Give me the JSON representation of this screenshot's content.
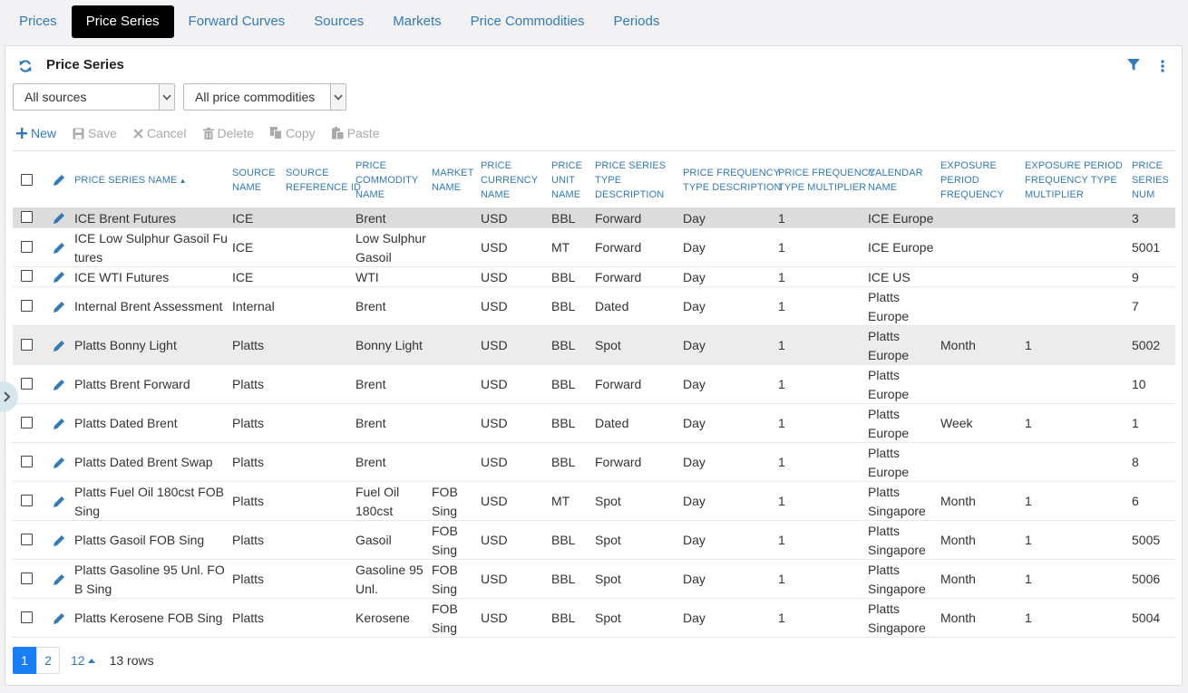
{
  "tabs": [
    "Prices",
    "Price Series",
    "Forward Curves",
    "Sources",
    "Markets",
    "Price Commodities",
    "Periods"
  ],
  "active_tab": "Price Series",
  "panel": {
    "title": "Price Series"
  },
  "filters": {
    "sources": "All sources",
    "commodities": "All price commodities"
  },
  "toolbar": {
    "new": "New",
    "save": "Save",
    "cancel": "Cancel",
    "delete": "Delete",
    "copy": "Copy",
    "paste": "Paste"
  },
  "columns": [
    [
      "PRICE SERIES NAME"
    ],
    [
      "SOURCE",
      "NAME"
    ],
    [
      "SOURCE",
      "REFERENCE ID"
    ],
    [
      "PRICE",
      "COMMODITY",
      "NAME"
    ],
    [
      "MARKET",
      "NAME"
    ],
    [
      "PRICE",
      "CURRENCY",
      "NAME"
    ],
    [
      "PRICE",
      "UNIT",
      "NAME"
    ],
    [
      "PRICE SERIES",
      "TYPE",
      "DESCRIPTION"
    ],
    [
      "PRICE FREQUENCY",
      "TYPE DESCRIPTION"
    ],
    [
      "PRICE FREQUENCY",
      "TYPE MULTIPLIER"
    ],
    [
      "CALENDAR",
      "NAME"
    ],
    [
      "EXPOSURE",
      "PERIOD",
      "FREQUENCY"
    ],
    [
      "EXPOSURE PERIOD",
      "FREQUENCY TYPE",
      "MULTIPLIER"
    ],
    [
      "PRICE",
      "SERIES",
      "NUM"
    ]
  ],
  "sort_indicator": "▲",
  "rows": [
    {
      "name": [
        "ICE Brent Futures"
      ],
      "source": "ICE",
      "ref": "",
      "commodity": [
        "Brent"
      ],
      "market": [],
      "currency": "USD",
      "unit": "BBL",
      "type": "Forward",
      "freq": "Day",
      "mult": "1",
      "calendar": [
        "ICE Europe"
      ],
      "exp_freq": "",
      "exp_mult": "",
      "num": "3"
    },
    {
      "name": [
        "ICE Low Sulphur Gasoil Fu",
        "tures"
      ],
      "source": "ICE",
      "ref": "",
      "commodity": [
        "Low Sulphur",
        "Gasoil"
      ],
      "market": [],
      "currency": "USD",
      "unit": "MT",
      "type": "Forward",
      "freq": "Day",
      "mult": "1",
      "calendar": [
        "ICE Europe"
      ],
      "exp_freq": "",
      "exp_mult": "",
      "num": "5001"
    },
    {
      "name": [
        "ICE WTI Futures"
      ],
      "source": "ICE",
      "ref": "",
      "commodity": [
        "WTI"
      ],
      "market": [],
      "currency": "USD",
      "unit": "BBL",
      "type": "Forward",
      "freq": "Day",
      "mult": "1",
      "calendar": [
        "ICE US"
      ],
      "exp_freq": "",
      "exp_mult": "",
      "num": "9"
    },
    {
      "name": [
        "Internal Brent Assessment"
      ],
      "source": "Internal",
      "ref": "",
      "commodity": [
        "Brent"
      ],
      "market": [],
      "currency": "USD",
      "unit": "BBL",
      "type": "Dated",
      "freq": "Day",
      "mult": "1",
      "calendar": [
        "Platts",
        "Europe"
      ],
      "exp_freq": "",
      "exp_mult": "",
      "num": "7"
    },
    {
      "name": [
        "Platts Bonny Light"
      ],
      "source": "Platts",
      "ref": "",
      "commodity": [
        "Bonny Light"
      ],
      "market": [],
      "currency": "USD",
      "unit": "BBL",
      "type": "Spot",
      "freq": "Day",
      "mult": "1",
      "calendar": [
        "Platts",
        "Europe"
      ],
      "exp_freq": "Month",
      "exp_mult": "1",
      "num": "5002"
    },
    {
      "name": [
        "Platts Brent Forward"
      ],
      "source": "Platts",
      "ref": "",
      "commodity": [
        "Brent"
      ],
      "market": [],
      "currency": "USD",
      "unit": "BBL",
      "type": "Forward",
      "freq": "Day",
      "mult": "1",
      "calendar": [
        "Platts",
        "Europe"
      ],
      "exp_freq": "",
      "exp_mult": "",
      "num": "10"
    },
    {
      "name": [
        "Platts Dated Brent"
      ],
      "source": "Platts",
      "ref": "",
      "commodity": [
        "Brent"
      ],
      "market": [],
      "currency": "USD",
      "unit": "BBL",
      "type": "Dated",
      "freq": "Day",
      "mult": "1",
      "calendar": [
        "Platts",
        "Europe"
      ],
      "exp_freq": "Week",
      "exp_mult": "1",
      "num": "1"
    },
    {
      "name": [
        "Platts Dated Brent Swap"
      ],
      "source": "Platts",
      "ref": "",
      "commodity": [
        "Brent"
      ],
      "market": [],
      "currency": "USD",
      "unit": "BBL",
      "type": "Forward",
      "freq": "Day",
      "mult": "1",
      "calendar": [
        "Platts",
        "Europe"
      ],
      "exp_freq": "",
      "exp_mult": "",
      "num": "8"
    },
    {
      "name": [
        "Platts Fuel Oil 180cst FOB",
        "Sing"
      ],
      "source": "Platts",
      "ref": "",
      "commodity": [
        "Fuel Oil",
        "180cst"
      ],
      "market": [
        "FOB",
        "Sing"
      ],
      "currency": "USD",
      "unit": "MT",
      "type": "Spot",
      "freq": "Day",
      "mult": "1",
      "calendar": [
        "Platts",
        "Singapore"
      ],
      "exp_freq": "Month",
      "exp_mult": "1",
      "num": "6"
    },
    {
      "name": [
        "Platts Gasoil FOB Sing"
      ],
      "source": "Platts",
      "ref": "",
      "commodity": [
        "Gasoil"
      ],
      "market": [
        "FOB",
        "Sing"
      ],
      "currency": "USD",
      "unit": "BBL",
      "type": "Spot",
      "freq": "Day",
      "mult": "1",
      "calendar": [
        "Platts",
        "Singapore"
      ],
      "exp_freq": "Month",
      "exp_mult": "1",
      "num": "5005"
    },
    {
      "name": [
        "Platts Gasoline 95 Unl. FO",
        "B Sing"
      ],
      "source": "Platts",
      "ref": "",
      "commodity": [
        "Gasoline 95",
        "Unl."
      ],
      "market": [
        "FOB",
        "Sing"
      ],
      "currency": "USD",
      "unit": "BBL",
      "type": "Spot",
      "freq": "Day",
      "mult": "1",
      "calendar": [
        "Platts",
        "Singapore"
      ],
      "exp_freq": "Month",
      "exp_mult": "1",
      "num": "5006"
    },
    {
      "name": [
        "Platts Kerosene FOB Sing"
      ],
      "source": "Platts",
      "ref": "",
      "commodity": [
        "Kerosene"
      ],
      "market": [
        "FOB",
        "Sing"
      ],
      "currency": "USD",
      "unit": "BBL",
      "type": "Spot",
      "freq": "Day",
      "mult": "1",
      "calendar": [
        "Platts",
        "Singapore"
      ],
      "exp_freq": "Month",
      "exp_mult": "1",
      "num": "5004"
    }
  ],
  "highlighted_rows": [
    0,
    4
  ],
  "pagination": {
    "pages": [
      "1",
      "2"
    ],
    "current_page": "1",
    "page_size": "12",
    "row_count": "13 rows"
  },
  "colors": {
    "link": "#337ab7",
    "active_tab_bg": "#000000",
    "active_page": "#1a7ef5"
  }
}
